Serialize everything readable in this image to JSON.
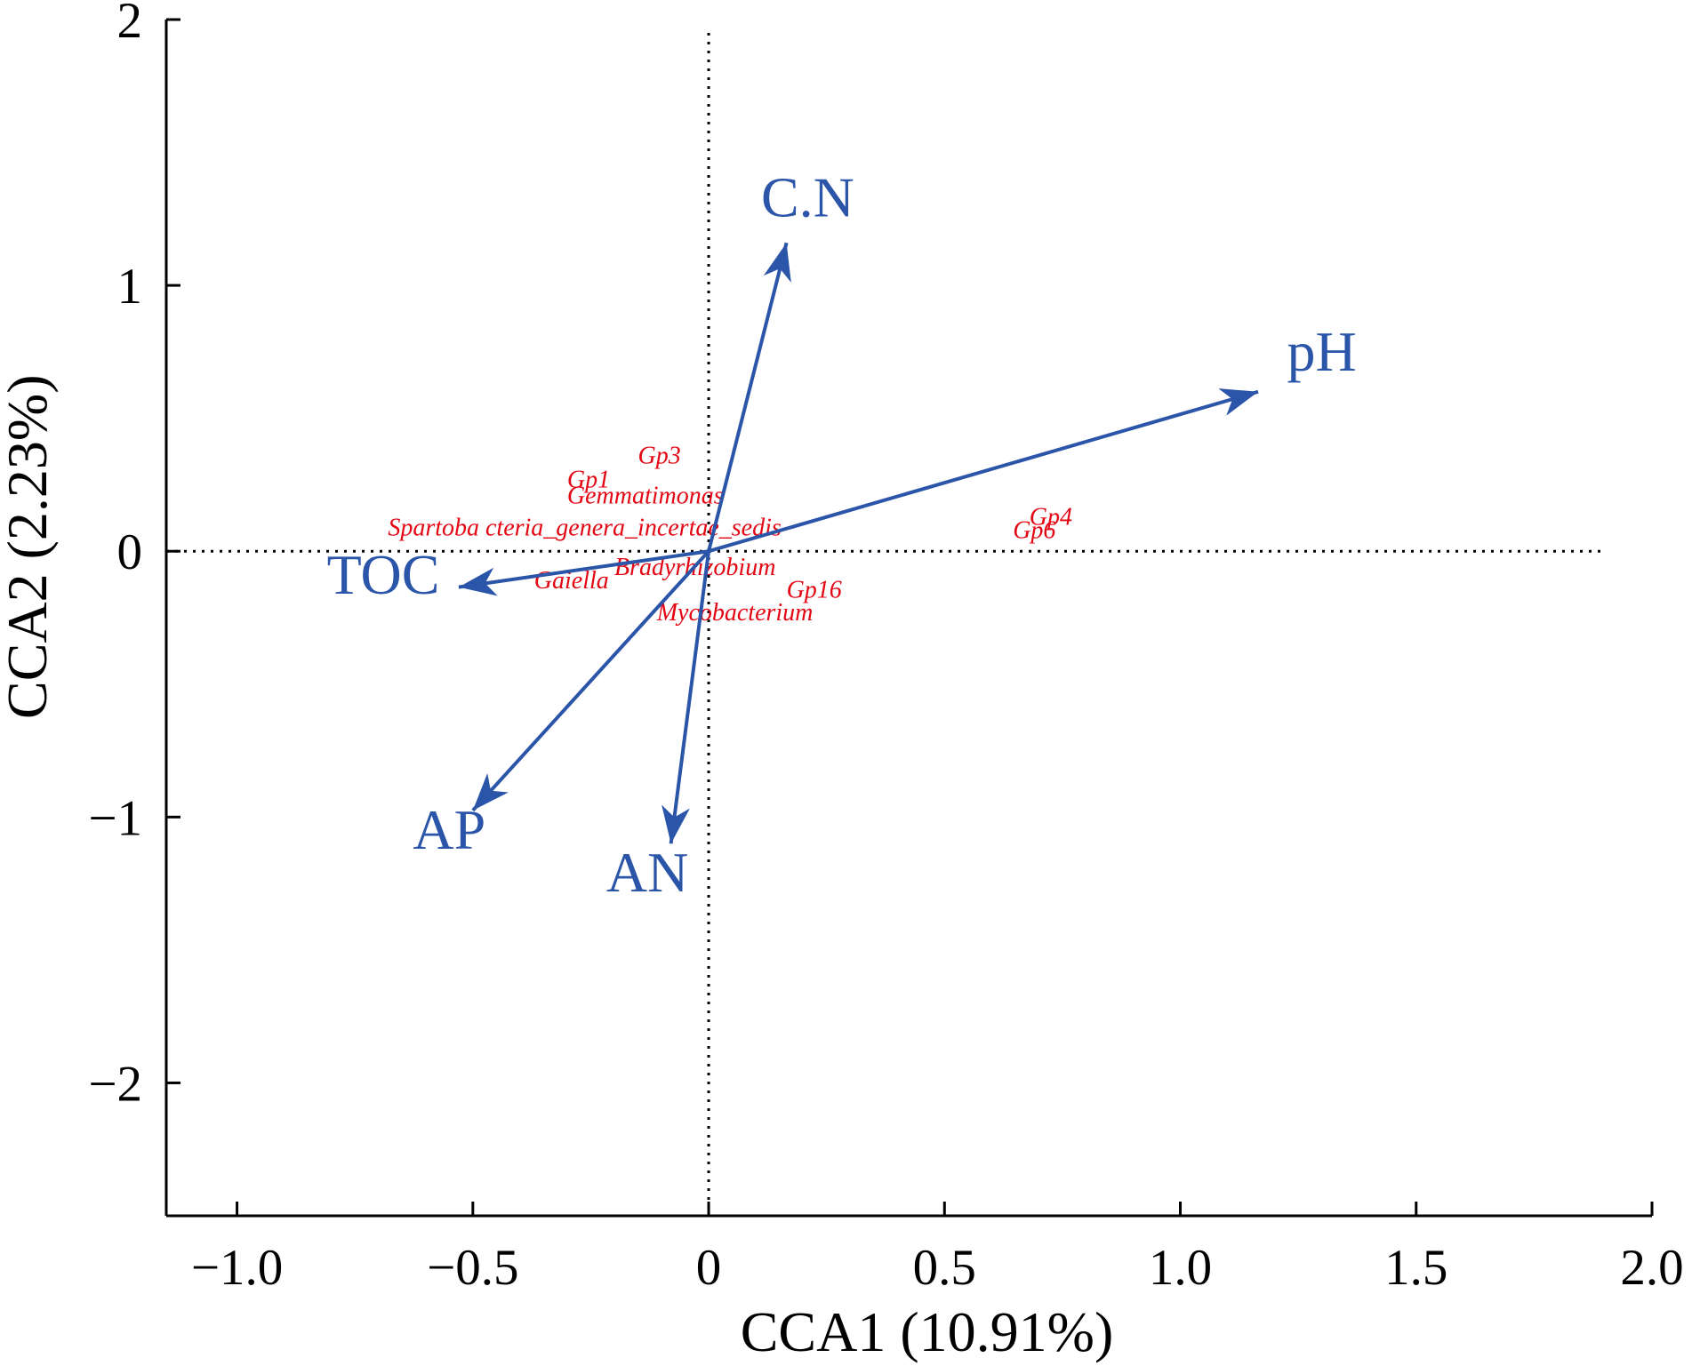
{
  "chart_data": {
    "type": "scatter",
    "title": "",
    "xlabel": "CCA1 (10.91%)",
    "ylabel": "CCA2 (2.23%)",
    "xlim": [
      -1.15,
      2.0
    ],
    "ylim": [
      -2.5,
      2.0
    ],
    "x_ticks": [
      {
        "value": -1.0,
        "label": "−1.0"
      },
      {
        "value": -0.5,
        "label": "−0.5"
      },
      {
        "value": 0,
        "label": "0"
      },
      {
        "value": 0.5,
        "label": "0.5"
      },
      {
        "value": 1.0,
        "label": "1.0"
      },
      {
        "value": 1.5,
        "label": "1.5"
      },
      {
        "value": 2.0,
        "label": "2.0"
      }
    ],
    "y_ticks": [
      {
        "value": 2,
        "label": "2"
      },
      {
        "value": 1,
        "label": "1"
      },
      {
        "value": 0,
        "label": "0"
      },
      {
        "value": -1,
        "label": "−1"
      },
      {
        "value": -2,
        "label": "−2"
      }
    ],
    "zero_lines": {
      "style": "dotted",
      "x_extent": [
        -1.15,
        1.9
      ],
      "y_extent": [
        -2.5,
        1.95
      ]
    },
    "grid": false,
    "arrow_color": "#2b55a8",
    "label_color": "#2b55a8",
    "genus_color": "#e30613",
    "environment_vectors": [
      {
        "name": "C.N",
        "x": 0.165,
        "y": 1.16,
        "label_x": 0.21,
        "label_y": 1.26
      },
      {
        "name": "pH",
        "x": 1.165,
        "y": 0.6,
        "label_x": 1.3,
        "label_y": 0.68
      },
      {
        "name": "TOC",
        "x": -0.53,
        "y": -0.135,
        "label_x": -0.69,
        "label_y": -0.16
      },
      {
        "name": "AP",
        "x": -0.5,
        "y": -0.975,
        "label_x": -0.55,
        "label_y": -1.12
      },
      {
        "name": "AN",
        "x": -0.08,
        "y": -1.1,
        "label_x": -0.13,
        "label_y": -1.28
      }
    ],
    "genera": [
      {
        "name": "Gp3",
        "x": -0.15,
        "y": 0.33
      },
      {
        "name": "Gp1",
        "x": -0.3,
        "y": 0.24
      },
      {
        "name": "Gemmatimonas",
        "x": -0.3,
        "y": 0.18
      },
      {
        "name": "Spartoba cteria_genera_incertae_sedis",
        "x": -0.68,
        "y": 0.06
      },
      {
        "name": "Gp4",
        "x": 0.68,
        "y": 0.1
      },
      {
        "name": "Gp6",
        "x": 0.645,
        "y": 0.05
      },
      {
        "name": "Gaiella",
        "x": -0.37,
        "y": -0.14
      },
      {
        "name": "Bradyrhizobium",
        "x": -0.2,
        "y": -0.09
      },
      {
        "name": "Gp16",
        "x": 0.165,
        "y": -0.175
      },
      {
        "name": "Mycobacterium",
        "x": -0.11,
        "y": -0.26
      }
    ]
  }
}
